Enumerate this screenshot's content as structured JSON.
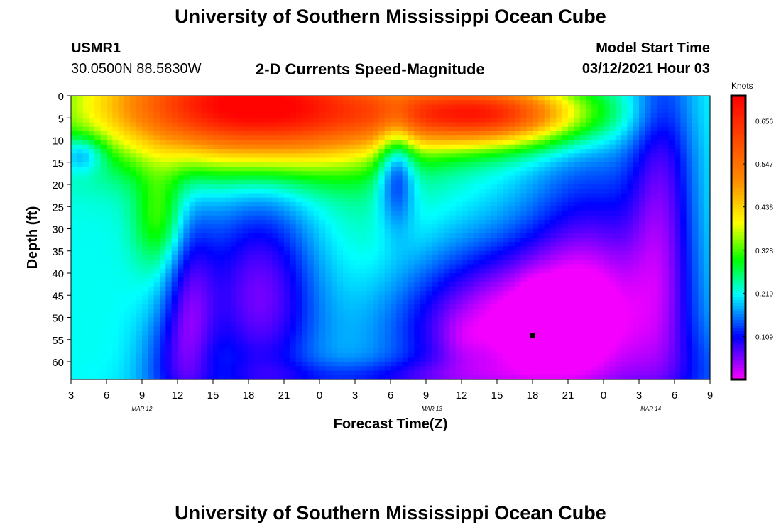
{
  "page_title": "University of Southern Mississippi Ocean Cube",
  "footer_title": "University of Southern Mississippi Ocean Cube",
  "station": {
    "id": "USMR1",
    "coords": "30.0500N 88.5830W"
  },
  "model": {
    "label": "Model Start Time",
    "time": "03/12/2021 Hour 03"
  },
  "chart_data": {
    "type": "heatmap",
    "title": "2-D Currents Speed-Magnitude",
    "xlabel": "Forecast Time(Z)",
    "ylabel": "Depth (ft)",
    "ylim": [
      0,
      64
    ],
    "y_ticks": [
      0,
      5,
      10,
      15,
      20,
      25,
      30,
      35,
      40,
      45,
      50,
      55,
      60
    ],
    "x_hours_from_start": [
      0,
      54
    ],
    "x_tick_labels": [
      "3",
      "6",
      "9",
      "12",
      "15",
      "18",
      "21",
      "0",
      "3",
      "6",
      "9",
      "12",
      "15",
      "18",
      "21",
      "0",
      "3",
      "6",
      "9"
    ],
    "date_labels": [
      {
        "text": "MAR 12",
        "hour": 6
      },
      {
        "text": "MAR 13",
        "hour": 30.5
      },
      {
        "text": "MAR 14",
        "hour": 49
      }
    ],
    "colorbar": {
      "label": "Knots",
      "min": 0.0,
      "max": 0.72,
      "ticks": [
        "0.656",
        "0.547",
        "0.438",
        "0.328",
        "0.219",
        "0.109"
      ],
      "tick_values": [
        0.656,
        0.547,
        0.438,
        0.328,
        0.219,
        0.109
      ],
      "colors": [
        "#ff00ff",
        "#0000ff",
        "#00ffff",
        "#00ff00",
        "#ffff00",
        "#ff0000"
      ]
    },
    "marker": {
      "hour": 39,
      "depth": 54
    }
  }
}
